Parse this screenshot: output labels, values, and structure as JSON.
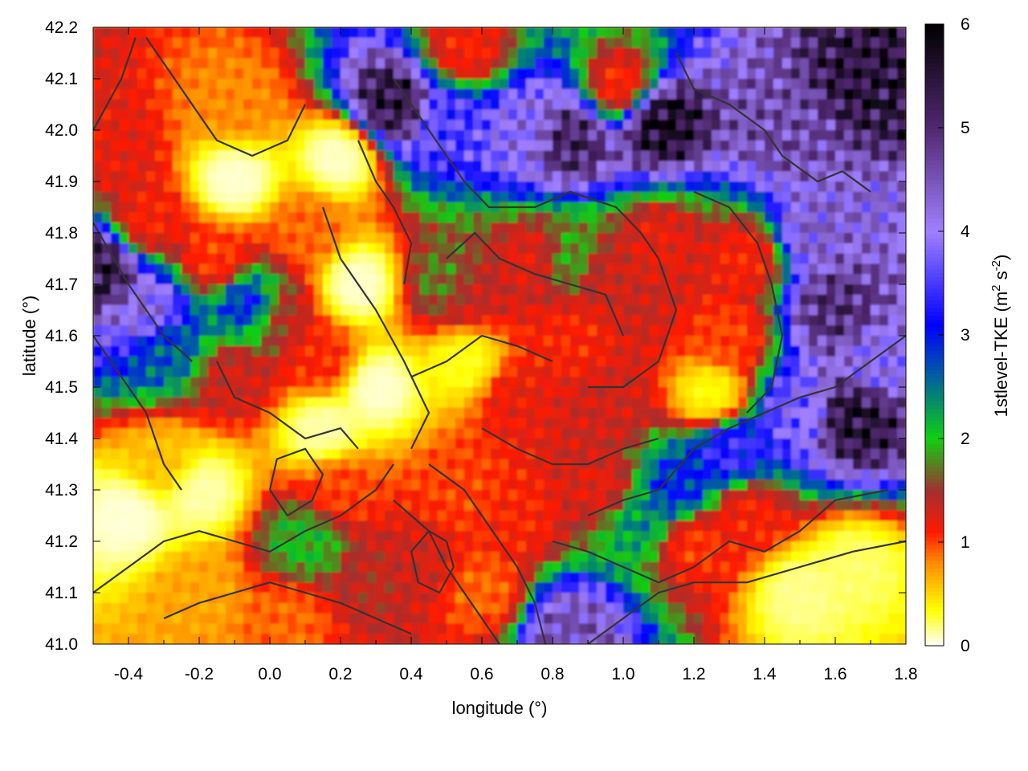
{
  "chart_data": {
    "type": "heatmap",
    "xlabel": "longitude (°)",
    "ylabel": "latitude (°)",
    "colorbar_label": "1stlevel-TKE (m² s⁻²)",
    "colorbar_label_parts": {
      "prefix": "1stlevel-TKE (m",
      "sup1": "2",
      "middle": " s",
      "sup2": "-2",
      "suffix": ")"
    },
    "xlim": [
      -0.5,
      1.8
    ],
    "ylim": [
      41.0,
      42.2
    ],
    "clim": [
      0,
      6
    ],
    "x_ticks": [
      "-0.4",
      "-0.2",
      "0.0",
      "0.2",
      "0.4",
      "0.6",
      "0.8",
      "1.0",
      "1.2",
      "1.4",
      "1.6",
      "1.8"
    ],
    "x_tick_values": [
      -0.4,
      -0.2,
      0.0,
      0.2,
      0.4,
      0.6,
      0.8,
      1.0,
      1.2,
      1.4,
      1.6,
      1.8
    ],
    "y_ticks": [
      "41.0",
      "41.1",
      "41.2",
      "41.3",
      "41.4",
      "41.5",
      "41.6",
      "41.7",
      "41.8",
      "41.9",
      "42.0",
      "42.1",
      "42.2"
    ],
    "y_tick_values": [
      41.0,
      41.1,
      41.2,
      41.3,
      41.4,
      41.5,
      41.6,
      41.7,
      41.8,
      41.9,
      42.0,
      42.1,
      42.2
    ],
    "colorbar_ticks": [
      "0",
      "1",
      "2",
      "3",
      "4",
      "5",
      "6"
    ],
    "colorbar_tick_values": [
      0,
      1,
      2,
      3,
      4,
      5,
      6
    ],
    "colormap": [
      {
        "value": 0.0,
        "color": "#ffffff"
      },
      {
        "value": 0.35,
        "color": "#ffff00"
      },
      {
        "value": 0.8,
        "color": "#ff8c00"
      },
      {
        "value": 1.1,
        "color": "#ff1a00"
      },
      {
        "value": 1.5,
        "color": "#a03030"
      },
      {
        "value": 2.0,
        "color": "#10d010"
      },
      {
        "value": 2.6,
        "color": "#0060a0"
      },
      {
        "value": 3.1,
        "color": "#0000ff"
      },
      {
        "value": 4.0,
        "color": "#a080ff"
      },
      {
        "value": 5.0,
        "color": "#502870"
      },
      {
        "value": 6.0,
        "color": "#000000"
      }
    ],
    "high_tke_regions": [
      {
        "lon": 0.35,
        "lat": 42.05,
        "value": 5.5
      },
      {
        "lon": 0.5,
        "lat": 42.02,
        "value": 3.5
      },
      {
        "lon": 0.72,
        "lat": 42.0,
        "value": 4.0
      },
      {
        "lon": 0.85,
        "lat": 41.98,
        "value": 5.2
      },
      {
        "lon": 1.1,
        "lat": 42.02,
        "value": 5.8
      },
      {
        "lon": 1.45,
        "lat": 42.0,
        "value": 4.6
      },
      {
        "lon": 1.7,
        "lat": 42.1,
        "value": 5.5
      },
      {
        "lon": 1.55,
        "lat": 41.8,
        "value": 4.3
      },
      {
        "lon": 1.6,
        "lat": 41.65,
        "value": 5.0
      },
      {
        "lon": 1.72,
        "lat": 41.55,
        "value": 4.0
      },
      {
        "lon": 1.65,
        "lat": 41.44,
        "value": 5.6
      },
      {
        "lon": 1.5,
        "lat": 41.45,
        "value": 3.8
      },
      {
        "lon": 1.3,
        "lat": 41.38,
        "value": 3.4
      },
      {
        "lon": 1.15,
        "lat": 41.3,
        "value": 3.0
      },
      {
        "lon": 1.05,
        "lat": 41.25,
        "value": 2.4
      },
      {
        "lon": -0.35,
        "lat": 41.64,
        "value": 4.2
      },
      {
        "lon": -0.3,
        "lat": 41.58,
        "value": 2.6
      },
      {
        "lon": -0.48,
        "lat": 41.73,
        "value": 5.5
      },
      {
        "lon": -0.05,
        "lat": 41.66,
        "value": 3.2
      },
      {
        "lon": 0.5,
        "lat": 41.7,
        "value": 1.8
      },
      {
        "lon": 0.85,
        "lat": 41.75,
        "value": 1.9
      },
      {
        "lon": 0.1,
        "lat": 41.2,
        "value": 2.0
      },
      {
        "lon": 0.85,
        "lat": 41.02,
        "value": 4.5
      }
    ],
    "moderate_tke_regions": [
      {
        "lon": -0.45,
        "lat": 41.95,
        "value": 1.2
      },
      {
        "lon": -0.35,
        "lat": 41.82,
        "value": 1.1
      },
      {
        "lon": -0.15,
        "lat": 41.75,
        "value": 1.0
      },
      {
        "lon": -0.1,
        "lat": 41.52,
        "value": 1.3
      },
      {
        "lon": 0.15,
        "lat": 41.55,
        "value": 1.1
      },
      {
        "lon": 0.1,
        "lat": 41.8,
        "value": 0.9
      },
      {
        "lon": 0.0,
        "lat": 41.65,
        "value": 1.2
      },
      {
        "lon": 0.55,
        "lat": 41.68,
        "value": 1.3
      },
      {
        "lon": 0.75,
        "lat": 41.75,
        "value": 1.2
      },
      {
        "lon": 0.95,
        "lat": 41.72,
        "value": 1.3
      },
      {
        "lon": 1.1,
        "lat": 41.78,
        "value": 1.2
      },
      {
        "lon": 0.85,
        "lat": 41.6,
        "value": 1.1
      },
      {
        "lon": 0.7,
        "lat": 41.48,
        "value": 1.2
      },
      {
        "lon": 0.95,
        "lat": 41.45,
        "value": 1.3
      },
      {
        "lon": 1.3,
        "lat": 41.6,
        "value": 1.0
      },
      {
        "lon": 1.35,
        "lat": 41.75,
        "value": 1.1
      },
      {
        "lon": 0.3,
        "lat": 41.12,
        "value": 1.4
      },
      {
        "lon": 0.42,
        "lat": 41.15,
        "value": 1.3
      },
      {
        "lon": 0.2,
        "lat": 41.3,
        "value": 1.0
      },
      {
        "lon": 0.55,
        "lat": 41.3,
        "value": 1.0
      },
      {
        "lon": 0.7,
        "lat": 41.25,
        "value": 1.1
      },
      {
        "lon": 0.95,
        "lat": 41.3,
        "value": 1.2
      },
      {
        "lon": 1.2,
        "lat": 41.2,
        "value": 1.0
      },
      {
        "lon": 1.35,
        "lat": 41.25,
        "value": 1.1
      },
      {
        "lon": 0.6,
        "lat": 41.1,
        "value": 0.9
      },
      {
        "lon": 1.0,
        "lat": 42.08,
        "value": 1.0
      },
      {
        "lon": 0.55,
        "lat": 42.15,
        "value": 1.1
      },
      {
        "lon": -0.2,
        "lat": 41.1,
        "value": 0.7
      },
      {
        "lon": 0.05,
        "lat": 41.05,
        "value": 0.9
      },
      {
        "lon": -0.1,
        "lat": 42.05,
        "value": 0.8
      },
      {
        "lon": -0.3,
        "lat": 41.35,
        "value": 0.6
      }
    ],
    "low_tke_regions": [
      {
        "lon": -0.1,
        "lat": 41.9,
        "value": 0.05
      },
      {
        "lon": 0.2,
        "lat": 41.95,
        "value": 0.05
      },
      {
        "lon": 0.25,
        "lat": 41.7,
        "value": 0.05
      },
      {
        "lon": 0.3,
        "lat": 41.5,
        "value": 0.05
      },
      {
        "lon": 0.15,
        "lat": 41.42,
        "value": 0.1
      },
      {
        "lon": -0.4,
        "lat": 41.25,
        "value": 0.05
      },
      {
        "lon": -0.2,
        "lat": 41.3,
        "value": 0.1
      },
      {
        "lon": 1.5,
        "lat": 41.1,
        "value": 0.15
      },
      {
        "lon": 1.65,
        "lat": 41.15,
        "value": 0.2
      },
      {
        "lon": 0.55,
        "lat": 41.55,
        "value": 0.3
      },
      {
        "lon": 1.25,
        "lat": 41.48,
        "value": 0.3
      }
    ],
    "elevation_contours": [
      [
        [
          -0.5,
          42.0
        ],
        [
          -0.42,
          42.1
        ],
        [
          -0.38,
          42.18
        ]
      ],
      [
        [
          -0.35,
          42.18
        ],
        [
          -0.25,
          42.08
        ],
        [
          -0.15,
          41.98
        ],
        [
          -0.05,
          41.95
        ],
        [
          0.05,
          41.98
        ],
        [
          0.1,
          42.05
        ]
      ],
      [
        [
          -0.5,
          41.82
        ],
        [
          -0.4,
          41.7
        ],
        [
          -0.3,
          41.6
        ],
        [
          -0.22,
          41.55
        ]
      ],
      [
        [
          -0.5,
          41.6
        ],
        [
          -0.4,
          41.5
        ],
        [
          -0.35,
          41.45
        ],
        [
          -0.3,
          41.35
        ],
        [
          -0.25,
          41.3
        ]
      ],
      [
        [
          -0.15,
          41.55
        ],
        [
          -0.1,
          41.48
        ],
        [
          0.0,
          41.45
        ],
        [
          0.1,
          41.4
        ],
        [
          0.2,
          41.42
        ],
        [
          0.25,
          41.38
        ]
      ],
      [
        [
          0.15,
          41.85
        ],
        [
          0.2,
          41.75
        ],
        [
          0.3,
          41.65
        ],
        [
          0.38,
          41.55
        ],
        [
          0.45,
          41.45
        ],
        [
          0.4,
          41.38
        ]
      ],
      [
        [
          0.25,
          41.98
        ],
        [
          0.3,
          41.9
        ],
        [
          0.35,
          41.85
        ],
        [
          0.4,
          41.78
        ],
        [
          0.38,
          41.7
        ]
      ],
      [
        [
          0.35,
          42.1
        ],
        [
          0.45,
          42.0
        ],
        [
          0.55,
          41.9
        ],
        [
          0.62,
          41.85
        ],
        [
          0.75,
          41.85
        ],
        [
          0.85,
          41.88
        ],
        [
          0.98,
          41.85
        ],
        [
          1.05,
          41.8
        ],
        [
          1.1,
          41.75
        ],
        [
          1.15,
          41.65
        ],
        [
          1.1,
          41.55
        ],
        [
          1.0,
          41.5
        ],
        [
          0.9,
          41.5
        ]
      ],
      [
        [
          0.5,
          41.75
        ],
        [
          0.58,
          41.8
        ],
        [
          0.65,
          41.75
        ],
        [
          0.75,
          41.72
        ],
        [
          0.85,
          41.7
        ],
        [
          0.95,
          41.68
        ],
        [
          1.0,
          41.6
        ]
      ],
      [
        [
          0.4,
          41.52
        ],
        [
          0.5,
          41.55
        ],
        [
          0.6,
          41.6
        ],
        [
          0.7,
          41.58
        ],
        [
          0.8,
          41.55
        ]
      ],
      [
        [
          1.2,
          41.88
        ],
        [
          1.3,
          41.85
        ],
        [
          1.38,
          41.78
        ],
        [
          1.42,
          41.7
        ],
        [
          1.45,
          41.6
        ],
        [
          1.42,
          41.5
        ],
        [
          1.35,
          41.45
        ]
      ],
      [
        [
          1.15,
          42.15
        ],
        [
          1.2,
          42.08
        ],
        [
          1.3,
          42.05
        ],
        [
          1.4,
          42.0
        ],
        [
          1.45,
          41.95
        ],
        [
          1.55,
          41.9
        ],
        [
          1.62,
          41.92
        ],
        [
          1.7,
          41.88
        ]
      ],
      [
        [
          0.9,
          41.25
        ],
        [
          1.0,
          41.28
        ],
        [
          1.1,
          41.3
        ],
        [
          1.2,
          41.38
        ],
        [
          1.3,
          41.42
        ],
        [
          1.4,
          41.45
        ],
        [
          1.5,
          41.48
        ],
        [
          1.6,
          41.5
        ],
        [
          1.7,
          41.55
        ],
        [
          1.8,
          41.6
        ]
      ],
      [
        [
          0.8,
          41.2
        ],
        [
          0.9,
          41.18
        ],
        [
          1.0,
          41.15
        ],
        [
          1.1,
          41.12
        ],
        [
          1.2,
          41.15
        ],
        [
          1.3,
          41.2
        ],
        [
          1.4,
          41.18
        ],
        [
          1.5,
          41.22
        ],
        [
          1.6,
          41.28
        ],
        [
          1.75,
          41.3
        ]
      ],
      [
        [
          0.9,
          41.0
        ],
        [
          1.0,
          41.05
        ],
        [
          1.1,
          41.1
        ],
        [
          1.2,
          41.12
        ],
        [
          1.35,
          41.12
        ],
        [
          1.5,
          41.15
        ],
        [
          1.65,
          41.18
        ],
        [
          1.8,
          41.2
        ]
      ],
      [
        [
          -0.5,
          41.1
        ],
        [
          -0.4,
          41.15
        ],
        [
          -0.3,
          41.2
        ],
        [
          -0.2,
          41.22
        ],
        [
          -0.1,
          41.2
        ],
        [
          0.0,
          41.18
        ],
        [
          0.1,
          41.22
        ],
        [
          0.2,
          41.25
        ],
        [
          0.3,
          41.3
        ],
        [
          0.35,
          41.35
        ]
      ],
      [
        [
          -0.3,
          41.05
        ],
        [
          -0.2,
          41.08
        ],
        [
          -0.1,
          41.1
        ],
        [
          0.0,
          41.12
        ],
        [
          0.1,
          41.1
        ],
        [
          0.2,
          41.08
        ],
        [
          0.3,
          41.05
        ],
        [
          0.4,
          41.02
        ]
      ],
      [
        [
          0.35,
          41.28
        ],
        [
          0.45,
          41.22
        ],
        [
          0.5,
          41.15
        ],
        [
          0.55,
          41.1
        ],
        [
          0.6,
          41.05
        ],
        [
          0.65,
          41.0
        ]
      ],
      [
        [
          0.45,
          41.35
        ],
        [
          0.55,
          41.3
        ],
        [
          0.6,
          41.25
        ],
        [
          0.65,
          41.2
        ],
        [
          0.7,
          41.15
        ],
        [
          0.75,
          41.08
        ],
        [
          0.78,
          41.0
        ]
      ],
      [
        [
          0.6,
          41.42
        ],
        [
          0.7,
          41.38
        ],
        [
          0.8,
          41.35
        ],
        [
          0.9,
          41.35
        ],
        [
          1.0,
          41.38
        ],
        [
          1.1,
          41.4
        ]
      ],
      [
        [
          0.5,
          41.2
        ],
        [
          0.52,
          41.15
        ],
        [
          0.48,
          41.1
        ],
        [
          0.42,
          41.12
        ],
        [
          0.4,
          41.18
        ],
        [
          0.45,
          41.22
        ],
        [
          0.5,
          41.2
        ]
      ],
      [
        [
          0.0,
          41.3
        ],
        [
          0.05,
          41.25
        ],
        [
          0.12,
          41.28
        ],
        [
          0.15,
          41.33
        ],
        [
          0.1,
          41.38
        ],
        [
          0.02,
          41.36
        ],
        [
          0.0,
          41.3
        ]
      ]
    ]
  }
}
